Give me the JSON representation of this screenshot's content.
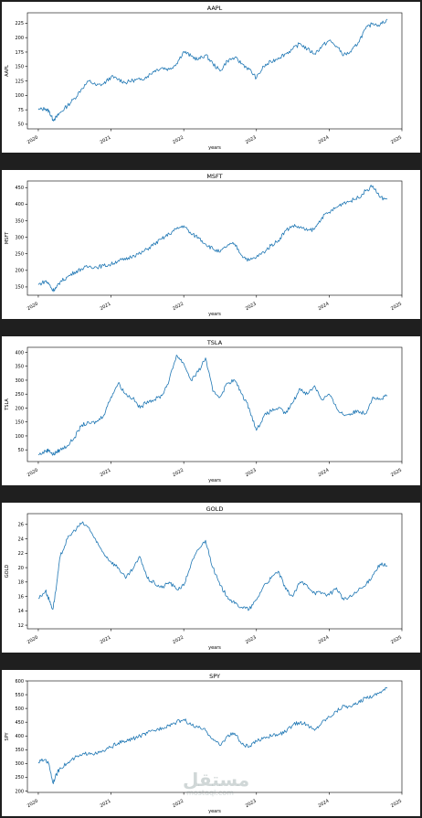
{
  "chart_data": [
    {
      "type": "line",
      "title": "AAPL",
      "ylabel": "AAPL",
      "xlabel": "years",
      "xlim": [
        2019.85,
        2025.0
      ],
      "ylim": [
        42,
        243
      ],
      "xticks": [
        "2020",
        "2021",
        "2022",
        "2023",
        "2024",
        "2025"
      ],
      "yticks": [
        "50",
        "75",
        "100",
        "125",
        "150",
        "175",
        "200",
        "225"
      ],
      "series": [
        {
          "x": [
            2020.0,
            2020.1,
            2020.15,
            2020.2,
            2020.25,
            2020.3,
            2020.4,
            2020.5,
            2020.6,
            2020.7,
            2020.8,
            2020.9,
            2021.0,
            2021.1,
            2021.2,
            2021.3,
            2021.4,
            2021.5,
            2021.6,
            2021.7,
            2021.8,
            2021.9,
            2022.0,
            2022.1,
            2022.2,
            2022.3,
            2022.4,
            2022.5,
            2022.6,
            2022.7,
            2022.8,
            2022.9,
            2023.0,
            2023.1,
            2023.2,
            2023.3,
            2023.4,
            2023.5,
            2023.6,
            2023.7,
            2023.8,
            2023.9,
            2024.0,
            2024.1,
            2024.2,
            2024.3,
            2024.4,
            2024.5,
            2024.6,
            2024.7,
            2024.8
          ],
          "y": [
            75,
            77,
            72,
            58,
            62,
            70,
            82,
            95,
            112,
            125,
            117,
            120,
            132,
            128,
            122,
            126,
            127,
            133,
            143,
            148,
            145,
            155,
            176,
            168,
            162,
            170,
            155,
            142,
            160,
            165,
            155,
            145,
            130,
            150,
            158,
            165,
            172,
            180,
            190,
            180,
            172,
            185,
            195,
            185,
            170,
            175,
            192,
            215,
            225,
            222,
            232
          ]
        }
      ]
    },
    {
      "type": "line",
      "title": "MSFT",
      "ylabel": "MSFT",
      "xlabel": "years",
      "xlim": [
        2019.85,
        2025.0
      ],
      "ylim": [
        125,
        470
      ],
      "xticks": [
        "2020",
        "2021",
        "2022",
        "2023",
        "2024",
        "2025"
      ],
      "yticks": [
        "150",
        "200",
        "250",
        "300",
        "350",
        "400",
        "450"
      ],
      "series": [
        {
          "x": [
            2020.0,
            2020.1,
            2020.15,
            2020.2,
            2020.25,
            2020.3,
            2020.4,
            2020.5,
            2020.6,
            2020.7,
            2020.8,
            2020.9,
            2021.0,
            2021.1,
            2021.2,
            2021.3,
            2021.4,
            2021.5,
            2021.6,
            2021.7,
            2021.8,
            2021.9,
            2022.0,
            2022.1,
            2022.2,
            2022.3,
            2022.4,
            2022.5,
            2022.6,
            2022.7,
            2022.8,
            2022.9,
            2023.0,
            2023.1,
            2023.2,
            2023.3,
            2023.4,
            2023.5,
            2023.6,
            2023.7,
            2023.8,
            2023.9,
            2024.0,
            2024.1,
            2024.2,
            2024.3,
            2024.4,
            2024.5,
            2024.6,
            2024.7,
            2024.8
          ],
          "y": [
            157,
            168,
            158,
            140,
            148,
            165,
            180,
            195,
            205,
            212,
            210,
            214,
            218,
            230,
            232,
            245,
            250,
            265,
            280,
            295,
            310,
            325,
            335,
            310,
            300,
            280,
            265,
            255,
            275,
            280,
            245,
            230,
            240,
            255,
            275,
            290,
            320,
            335,
            330,
            320,
            325,
            360,
            375,
            390,
            405,
            410,
            420,
            440,
            455,
            420,
            415
          ]
        }
      ]
    },
    {
      "type": "line",
      "title": "TSLA",
      "ylabel": "TSLA",
      "xlabel": "years",
      "xlim": [
        2019.85,
        2025.0
      ],
      "ylim": [
        8,
        418
      ],
      "xticks": [
        "2020",
        "2021",
        "2022",
        "2023",
        "2024",
        "2025"
      ],
      "yticks": [
        "50",
        "100",
        "150",
        "200",
        "250",
        "300",
        "350",
        "400"
      ],
      "series": [
        {
          "x": [
            2020.0,
            2020.1,
            2020.15,
            2020.2,
            2020.25,
            2020.3,
            2020.4,
            2020.5,
            2020.6,
            2020.7,
            2020.8,
            2020.9,
            2021.0,
            2021.1,
            2021.2,
            2021.3,
            2021.4,
            2021.5,
            2021.6,
            2021.7,
            2021.8,
            2021.9,
            2022.0,
            2022.1,
            2022.2,
            2022.3,
            2022.4,
            2022.5,
            2022.6,
            2022.7,
            2022.8,
            2022.9,
            2023.0,
            2023.1,
            2023.2,
            2023.3,
            2023.4,
            2023.5,
            2023.6,
            2023.7,
            2023.8,
            2023.9,
            2024.0,
            2024.1,
            2024.2,
            2024.3,
            2024.4,
            2024.5,
            2024.6,
            2024.7,
            2024.8
          ],
          "y": [
            32,
            45,
            50,
            32,
            42,
            50,
            65,
            95,
            140,
            145,
            150,
            175,
            240,
            290,
            250,
            235,
            200,
            225,
            230,
            245,
            300,
            390,
            360,
            300,
            330,
            380,
            260,
            240,
            290,
            300,
            250,
            200,
            120,
            170,
            190,
            200,
            180,
            220,
            270,
            250,
            280,
            230,
            250,
            200,
            175,
            180,
            190,
            180,
            240,
            230,
            245
          ]
        }
      ]
    },
    {
      "type": "line",
      "title": "GOLD",
      "ylabel": "GOLD",
      "xlabel": "years",
      "xlim": [
        2019.85,
        2025.0
      ],
      "ylim": [
        11.5,
        27.5
      ],
      "xticks": [
        "2020",
        "2021",
        "2022",
        "2023",
        "2024",
        "2025"
      ],
      "yticks": [
        "12",
        "14",
        "16",
        "18",
        "20",
        "22",
        "24",
        "26"
      ],
      "series": [
        {
          "x": [
            2020.0,
            2020.1,
            2020.15,
            2020.2,
            2020.25,
            2020.3,
            2020.4,
            2020.5,
            2020.6,
            2020.7,
            2020.8,
            2020.9,
            2021.0,
            2021.1,
            2021.2,
            2021.3,
            2021.4,
            2021.5,
            2021.6,
            2021.7,
            2021.8,
            2021.9,
            2022.0,
            2022.1,
            2022.2,
            2022.3,
            2022.4,
            2022.5,
            2022.6,
            2022.7,
            2022.8,
            2022.9,
            2023.0,
            2023.1,
            2023.2,
            2023.3,
            2023.4,
            2023.5,
            2023.6,
            2023.7,
            2023.8,
            2023.9,
            2024.0,
            2024.1,
            2024.2,
            2024.3,
            2024.4,
            2024.5,
            2024.6,
            2024.7,
            2024.8
          ],
          "y": [
            15.7,
            16.8,
            15.5,
            14.2,
            17.5,
            21.5,
            24,
            25.2,
            26.2,
            25.5,
            23.5,
            22,
            20.8,
            20,
            18.5,
            19.8,
            21.5,
            18.5,
            17.8,
            17.2,
            18,
            17,
            17.5,
            20.5,
            22.5,
            23.8,
            20,
            17.5,
            16,
            15,
            14.5,
            14.2,
            15.5,
            17.5,
            18.5,
            19.5,
            17,
            16,
            18,
            17.5,
            16.5,
            16.5,
            16.2,
            17.2,
            15.5,
            16,
            16.8,
            17.5,
            19,
            20.5,
            20.2
          ]
        }
      ]
    },
    {
      "type": "line",
      "title": "SPY",
      "ylabel": "SPY",
      "xlabel": "years",
      "xlim": [
        2019.85,
        2025.0
      ],
      "ylim": [
        195,
        600
      ],
      "xticks": [
        "2020",
        "2021",
        "2022",
        "2023",
        "2024",
        "2025"
      ],
      "yticks": [
        "200",
        "250",
        "300",
        "350",
        "400",
        "450",
        "500",
        "550",
        "600"
      ],
      "series": [
        {
          "x": [
            2020.0,
            2020.1,
            2020.15,
            2020.2,
            2020.25,
            2020.3,
            2020.4,
            2020.5,
            2020.6,
            2020.7,
            2020.8,
            2020.9,
            2021.0,
            2021.1,
            2021.2,
            2021.3,
            2021.4,
            2021.5,
            2021.6,
            2021.7,
            2021.8,
            2021.9,
            2022.0,
            2022.1,
            2022.2,
            2022.3,
            2022.4,
            2022.5,
            2022.6,
            2022.7,
            2022.8,
            2022.9,
            2023.0,
            2023.1,
            2023.2,
            2023.3,
            2023.4,
            2023.5,
            2023.6,
            2023.7,
            2023.8,
            2023.9,
            2024.0,
            2024.1,
            2024.2,
            2024.3,
            2024.4,
            2024.5,
            2024.6,
            2024.7,
            2024.8
          ],
          "y": [
            305,
            315,
            295,
            230,
            260,
            285,
            300,
            320,
            330,
            340,
            335,
            345,
            360,
            375,
            380,
            390,
            400,
            410,
            420,
            430,
            440,
            450,
            460,
            440,
            430,
            420,
            390,
            365,
            400,
            410,
            370,
            360,
            380,
            395,
            400,
            405,
            415,
            440,
            450,
            440,
            420,
            450,
            470,
            490,
            510,
            505,
            520,
            540,
            545,
            560,
            575
          ]
        }
      ]
    }
  ],
  "watermark": {
    "arabic": "مستقل",
    "latin": "mostaql.com"
  }
}
